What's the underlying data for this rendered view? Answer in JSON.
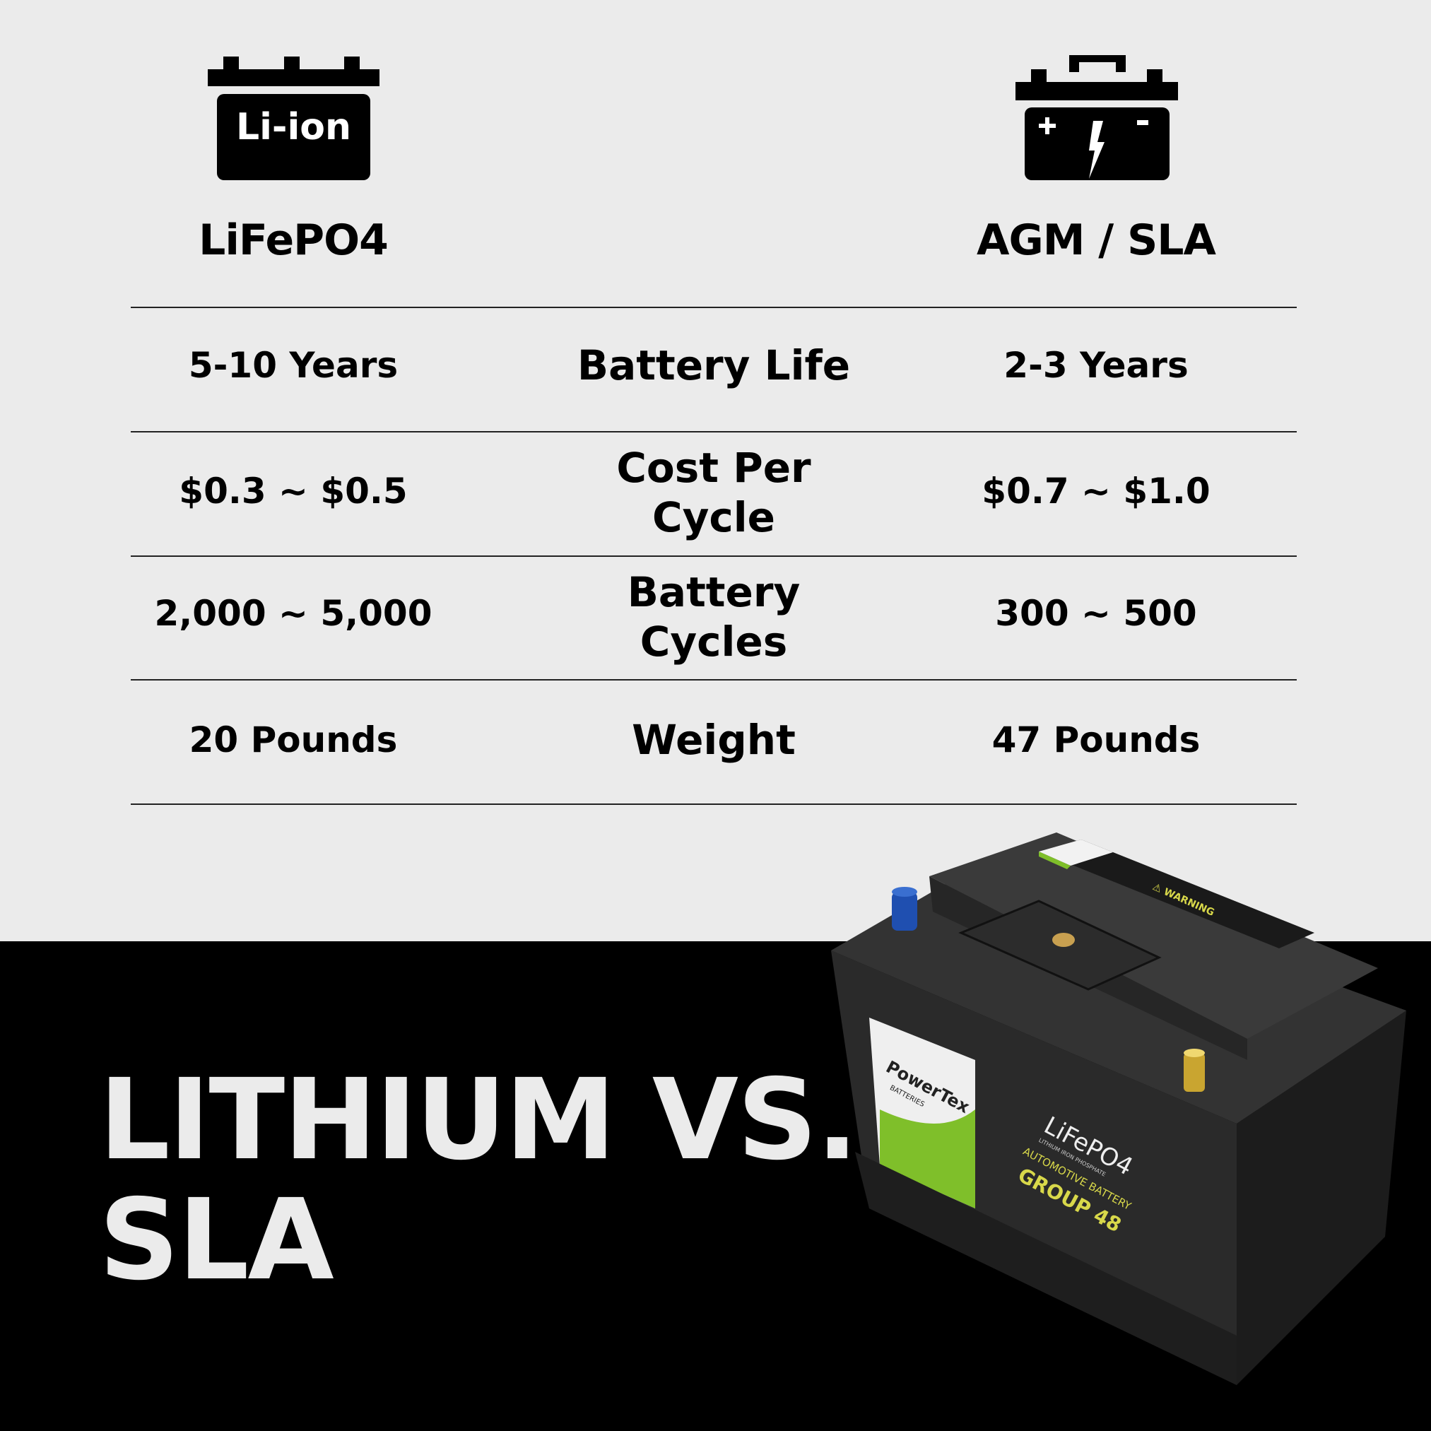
{
  "columns": {
    "left": {
      "icon": "li-ion-battery-icon",
      "icon_text": "Li-ion",
      "title": "LiFePO4"
    },
    "right": {
      "icon": "lead-acid-battery-icon",
      "title": "AGM / SLA"
    }
  },
  "rows": [
    {
      "label": "Battery Life",
      "left": "5-10 Years",
      "right": "2-3 Years"
    },
    {
      "label": "Cost Per Cycle",
      "left": "$0.3 ~ $0.5",
      "right": "$0.7 ~ $1.0"
    },
    {
      "label": "Battery Cycles",
      "left": "2,000 ~ 5,000",
      "right": "300 ~ 500"
    },
    {
      "label": "Weight",
      "left": "20 Pounds",
      "right": "47 Pounds"
    }
  ],
  "headline": {
    "line1": "LITHIUM VS.",
    "line2": "SLA"
  },
  "product": {
    "brand": "PowerTex",
    "brand_sub": "BATTERIES",
    "chemistry": "LiFePO4",
    "chemistry_sub": "LITHIUM IRON PHOSPHATE",
    "type": "AUTOMOTIVE BATTERY",
    "group": "GROUP 48",
    "warning": "WARNING"
  },
  "colors": {
    "background": "#ebebeb",
    "band": "#000000",
    "label_yellow": "#d8d84a",
    "brand_green": "#7fbf2a"
  }
}
